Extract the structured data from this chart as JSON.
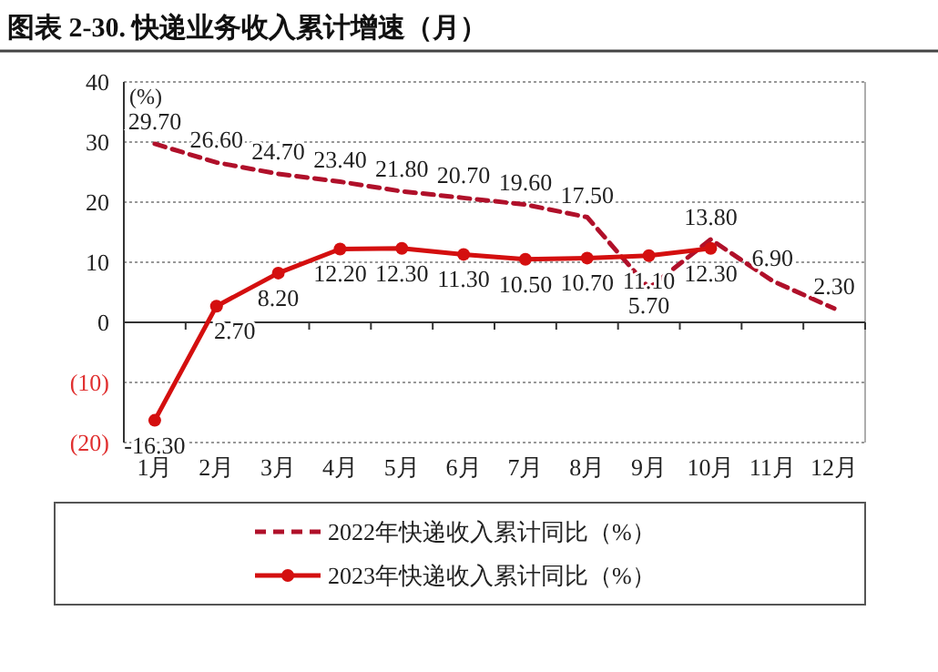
{
  "chart_data": {
    "type": "line",
    "title": "图表 2-30. 快递业务收入累计增速（月）",
    "ylabel": "(%)",
    "categories": [
      "1月",
      "2月",
      "3月",
      "4月",
      "5月",
      "6月",
      "7月",
      "8月",
      "9月",
      "10月",
      "11月",
      "12月"
    ],
    "series": [
      {
        "name": "2022年快递收入累计同比（%）",
        "color": "#b0102a",
        "line_style": "dashed",
        "marker": "none",
        "values": [
          29.7,
          26.6,
          24.7,
          23.4,
          21.8,
          20.7,
          19.6,
          17.5,
          5.7,
          13.8,
          6.9,
          2.3
        ],
        "value_labels": [
          "29.70",
          "26.60",
          "24.70",
          "23.40",
          "21.80",
          "20.70",
          "19.60",
          "17.50",
          "5.70",
          "13.80",
          "6.90",
          "2.30"
        ]
      },
      {
        "name": "2023年快递收入累计同比（%）",
        "color": "#d40f0f",
        "line_style": "solid",
        "marker": "circle",
        "values": [
          -16.3,
          2.7,
          8.2,
          12.2,
          12.3,
          11.3,
          10.5,
          10.7,
          11.1,
          12.3,
          null,
          null
        ],
        "value_labels": [
          "-16.30",
          "2.70",
          "8.20",
          "12.20",
          "12.30",
          "11.30",
          "10.50",
          "10.70",
          "11.10",
          "12.30",
          null,
          null
        ]
      }
    ],
    "ylim": [
      -20,
      40
    ],
    "yticks": [
      {
        "value": -20,
        "label": "(20)"
      },
      {
        "value": -10,
        "label": "(10)"
      },
      0,
      10,
      20,
      30,
      40
    ],
    "grid": "y",
    "legend": "bottom"
  }
}
